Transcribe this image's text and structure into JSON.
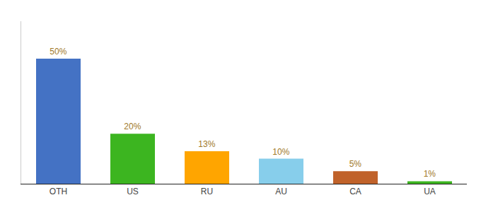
{
  "chart_data": {
    "type": "bar",
    "categories": [
      "OTH",
      "US",
      "RU",
      "AU",
      "CA",
      "UA"
    ],
    "values": [
      50,
      20,
      13,
      10,
      5,
      1
    ],
    "value_labels": [
      "50%",
      "20%",
      "13%",
      "10%",
      "5%",
      "1%"
    ],
    "colors": [
      "#4472C4",
      "#3CB520",
      "#FFA500",
      "#87CEEB",
      "#C0622A",
      "#3CB520"
    ],
    "ylim": [
      0,
      65
    ],
    "grid": false,
    "data_labels": true,
    "tick_labels": "x"
  }
}
